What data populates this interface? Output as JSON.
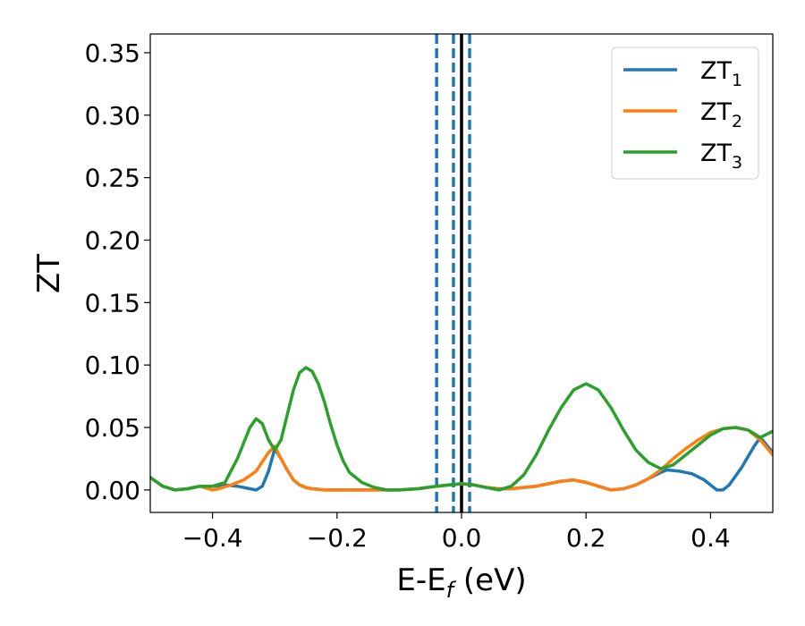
{
  "chart_data": {
    "type": "line",
    "title": "",
    "xlabel_main": "E-E",
    "xlabel_sub": "f",
    "xlabel_unit": " (eV)",
    "ylabel": "ZT",
    "xlim": [
      -0.5,
      0.5
    ],
    "ylim": [
      -0.018,
      0.365
    ],
    "x_ticks": [
      -0.4,
      -0.2,
      0.0,
      0.2,
      0.4
    ],
    "x_tick_labels": [
      "−0.4",
      "−0.2",
      "0.0",
      "0.2",
      "0.4"
    ],
    "y_ticks": [
      0.0,
      0.05,
      0.1,
      0.15,
      0.2,
      0.25,
      0.3,
      0.35
    ],
    "y_tick_labels": [
      "0.00",
      "0.05",
      "0.10",
      "0.15",
      "0.20",
      "0.25",
      "0.30",
      "0.35"
    ],
    "grid": false,
    "legend_position": "top-right",
    "vlines": [
      {
        "x": -0.04,
        "style": "dashed",
        "color": "#1f77b4"
      },
      {
        "x": -0.013,
        "style": "dashed",
        "color": "#1f77b4"
      },
      {
        "x": 0.013,
        "style": "dashed",
        "color": "#1f77b4"
      },
      {
        "x": 0.0,
        "style": "solid",
        "color": "#000000"
      }
    ],
    "series": [
      {
        "name": "ZT",
        "subscript": "1",
        "color": "#1f77b4",
        "points": [
          [
            -0.5,
            0.01
          ],
          [
            -0.48,
            0.003
          ],
          [
            -0.46,
            0.0
          ],
          [
            -0.44,
            0.001
          ],
          [
            -0.42,
            0.003
          ],
          [
            -0.4,
            0.003
          ],
          [
            -0.38,
            0.004
          ],
          [
            -0.36,
            0.003
          ],
          [
            -0.34,
            0.001
          ],
          [
            -0.33,
            0.0
          ],
          [
            -0.32,
            0.003
          ],
          [
            -0.31,
            0.015
          ],
          [
            -0.3,
            0.033
          ],
          [
            -0.29,
            0.025
          ],
          [
            -0.28,
            0.016
          ],
          [
            -0.27,
            0.008
          ],
          [
            -0.26,
            0.004
          ],
          [
            -0.25,
            0.002
          ],
          [
            -0.24,
            0.001
          ],
          [
            -0.22,
            0.0
          ],
          [
            -0.18,
            0.0
          ],
          [
            -0.14,
            0.0
          ],
          [
            -0.1,
            0.0
          ],
          [
            -0.07,
            0.001
          ],
          [
            -0.04,
            0.003
          ],
          [
            -0.02,
            0.004
          ],
          [
            0.0,
            0.005
          ],
          [
            0.02,
            0.004
          ],
          [
            0.04,
            0.002
          ],
          [
            0.06,
            0.001
          ],
          [
            0.08,
            0.001
          ],
          [
            0.1,
            0.002
          ],
          [
            0.12,
            0.003
          ],
          [
            0.14,
            0.005
          ],
          [
            0.16,
            0.007
          ],
          [
            0.18,
            0.008
          ],
          [
            0.2,
            0.006
          ],
          [
            0.22,
            0.003
          ],
          [
            0.24,
            0.0
          ],
          [
            0.26,
            0.001
          ],
          [
            0.28,
            0.004
          ],
          [
            0.3,
            0.009
          ],
          [
            0.32,
            0.014
          ],
          [
            0.33,
            0.016
          ],
          [
            0.35,
            0.015
          ],
          [
            0.37,
            0.013
          ],
          [
            0.39,
            0.008
          ],
          [
            0.41,
            0.0
          ],
          [
            0.42,
            0.0
          ],
          [
            0.43,
            0.004
          ],
          [
            0.45,
            0.018
          ],
          [
            0.47,
            0.035
          ],
          [
            0.48,
            0.042
          ],
          [
            0.5,
            0.03
          ]
        ]
      },
      {
        "name": "ZT",
        "subscript": "2",
        "color": "#ff7f0e",
        "points": [
          [
            -0.5,
            0.01
          ],
          [
            -0.48,
            0.003
          ],
          [
            -0.46,
            0.0
          ],
          [
            -0.44,
            0.001
          ],
          [
            -0.42,
            0.003
          ],
          [
            -0.4,
            0.0
          ],
          [
            -0.39,
            0.001
          ],
          [
            -0.37,
            0.004
          ],
          [
            -0.35,
            0.008
          ],
          [
            -0.33,
            0.015
          ],
          [
            -0.31,
            0.03
          ],
          [
            -0.3,
            0.035
          ],
          [
            -0.29,
            0.025
          ],
          [
            -0.28,
            0.016
          ],
          [
            -0.27,
            0.008
          ],
          [
            -0.26,
            0.004
          ],
          [
            -0.25,
            0.002
          ],
          [
            -0.24,
            0.001
          ],
          [
            -0.22,
            0.0
          ],
          [
            -0.18,
            0.0
          ],
          [
            -0.14,
            0.0
          ],
          [
            -0.1,
            0.0
          ],
          [
            -0.07,
            0.001
          ],
          [
            -0.04,
            0.003
          ],
          [
            -0.02,
            0.004
          ],
          [
            0.0,
            0.005
          ],
          [
            0.02,
            0.004
          ],
          [
            0.04,
            0.002
          ],
          [
            0.06,
            0.001
          ],
          [
            0.08,
            0.001
          ],
          [
            0.1,
            0.002
          ],
          [
            0.12,
            0.003
          ],
          [
            0.14,
            0.005
          ],
          [
            0.16,
            0.007
          ],
          [
            0.18,
            0.008
          ],
          [
            0.2,
            0.006
          ],
          [
            0.22,
            0.003
          ],
          [
            0.24,
            0.0
          ],
          [
            0.26,
            0.001
          ],
          [
            0.28,
            0.004
          ],
          [
            0.3,
            0.009
          ],
          [
            0.32,
            0.016
          ],
          [
            0.34,
            0.025
          ],
          [
            0.36,
            0.033
          ],
          [
            0.38,
            0.04
          ],
          [
            0.4,
            0.046
          ],
          [
            0.42,
            0.049
          ],
          [
            0.44,
            0.05
          ],
          [
            0.46,
            0.048
          ],
          [
            0.48,
            0.04
          ],
          [
            0.5,
            0.028
          ]
        ]
      },
      {
        "name": "ZT",
        "subscript": "3",
        "color": "#2ca02c",
        "points": [
          [
            -0.5,
            0.01
          ],
          [
            -0.48,
            0.003
          ],
          [
            -0.46,
            0.0
          ],
          [
            -0.44,
            0.001
          ],
          [
            -0.42,
            0.003
          ],
          [
            -0.4,
            0.003
          ],
          [
            -0.38,
            0.006
          ],
          [
            -0.36,
            0.025
          ],
          [
            -0.34,
            0.05
          ],
          [
            -0.33,
            0.057
          ],
          [
            -0.32,
            0.053
          ],
          [
            -0.31,
            0.04
          ],
          [
            -0.3,
            0.032
          ],
          [
            -0.29,
            0.04
          ],
          [
            -0.28,
            0.06
          ],
          [
            -0.27,
            0.08
          ],
          [
            -0.26,
            0.094
          ],
          [
            -0.25,
            0.098
          ],
          [
            -0.24,
            0.095
          ],
          [
            -0.23,
            0.085
          ],
          [
            -0.22,
            0.07
          ],
          [
            -0.21,
            0.052
          ],
          [
            -0.2,
            0.036
          ],
          [
            -0.19,
            0.023
          ],
          [
            -0.18,
            0.014
          ],
          [
            -0.16,
            0.006
          ],
          [
            -0.14,
            0.002
          ],
          [
            -0.12,
            0.0
          ],
          [
            -0.1,
            0.0
          ],
          [
            -0.07,
            0.001
          ],
          [
            -0.04,
            0.003
          ],
          [
            -0.02,
            0.004
          ],
          [
            0.0,
            0.005
          ],
          [
            0.02,
            0.004
          ],
          [
            0.04,
            0.002
          ],
          [
            0.06,
            0.0
          ],
          [
            0.08,
            0.003
          ],
          [
            0.1,
            0.012
          ],
          [
            0.12,
            0.028
          ],
          [
            0.14,
            0.048
          ],
          [
            0.16,
            0.066
          ],
          [
            0.18,
            0.08
          ],
          [
            0.2,
            0.085
          ],
          [
            0.22,
            0.08
          ],
          [
            0.24,
            0.066
          ],
          [
            0.26,
            0.048
          ],
          [
            0.28,
            0.032
          ],
          [
            0.3,
            0.022
          ],
          [
            0.32,
            0.017
          ],
          [
            0.34,
            0.02
          ],
          [
            0.36,
            0.028
          ],
          [
            0.38,
            0.036
          ],
          [
            0.4,
            0.044
          ],
          [
            0.42,
            0.049
          ],
          [
            0.44,
            0.05
          ],
          [
            0.46,
            0.048
          ],
          [
            0.48,
            0.042
          ],
          [
            0.5,
            0.047
          ]
        ]
      }
    ]
  }
}
